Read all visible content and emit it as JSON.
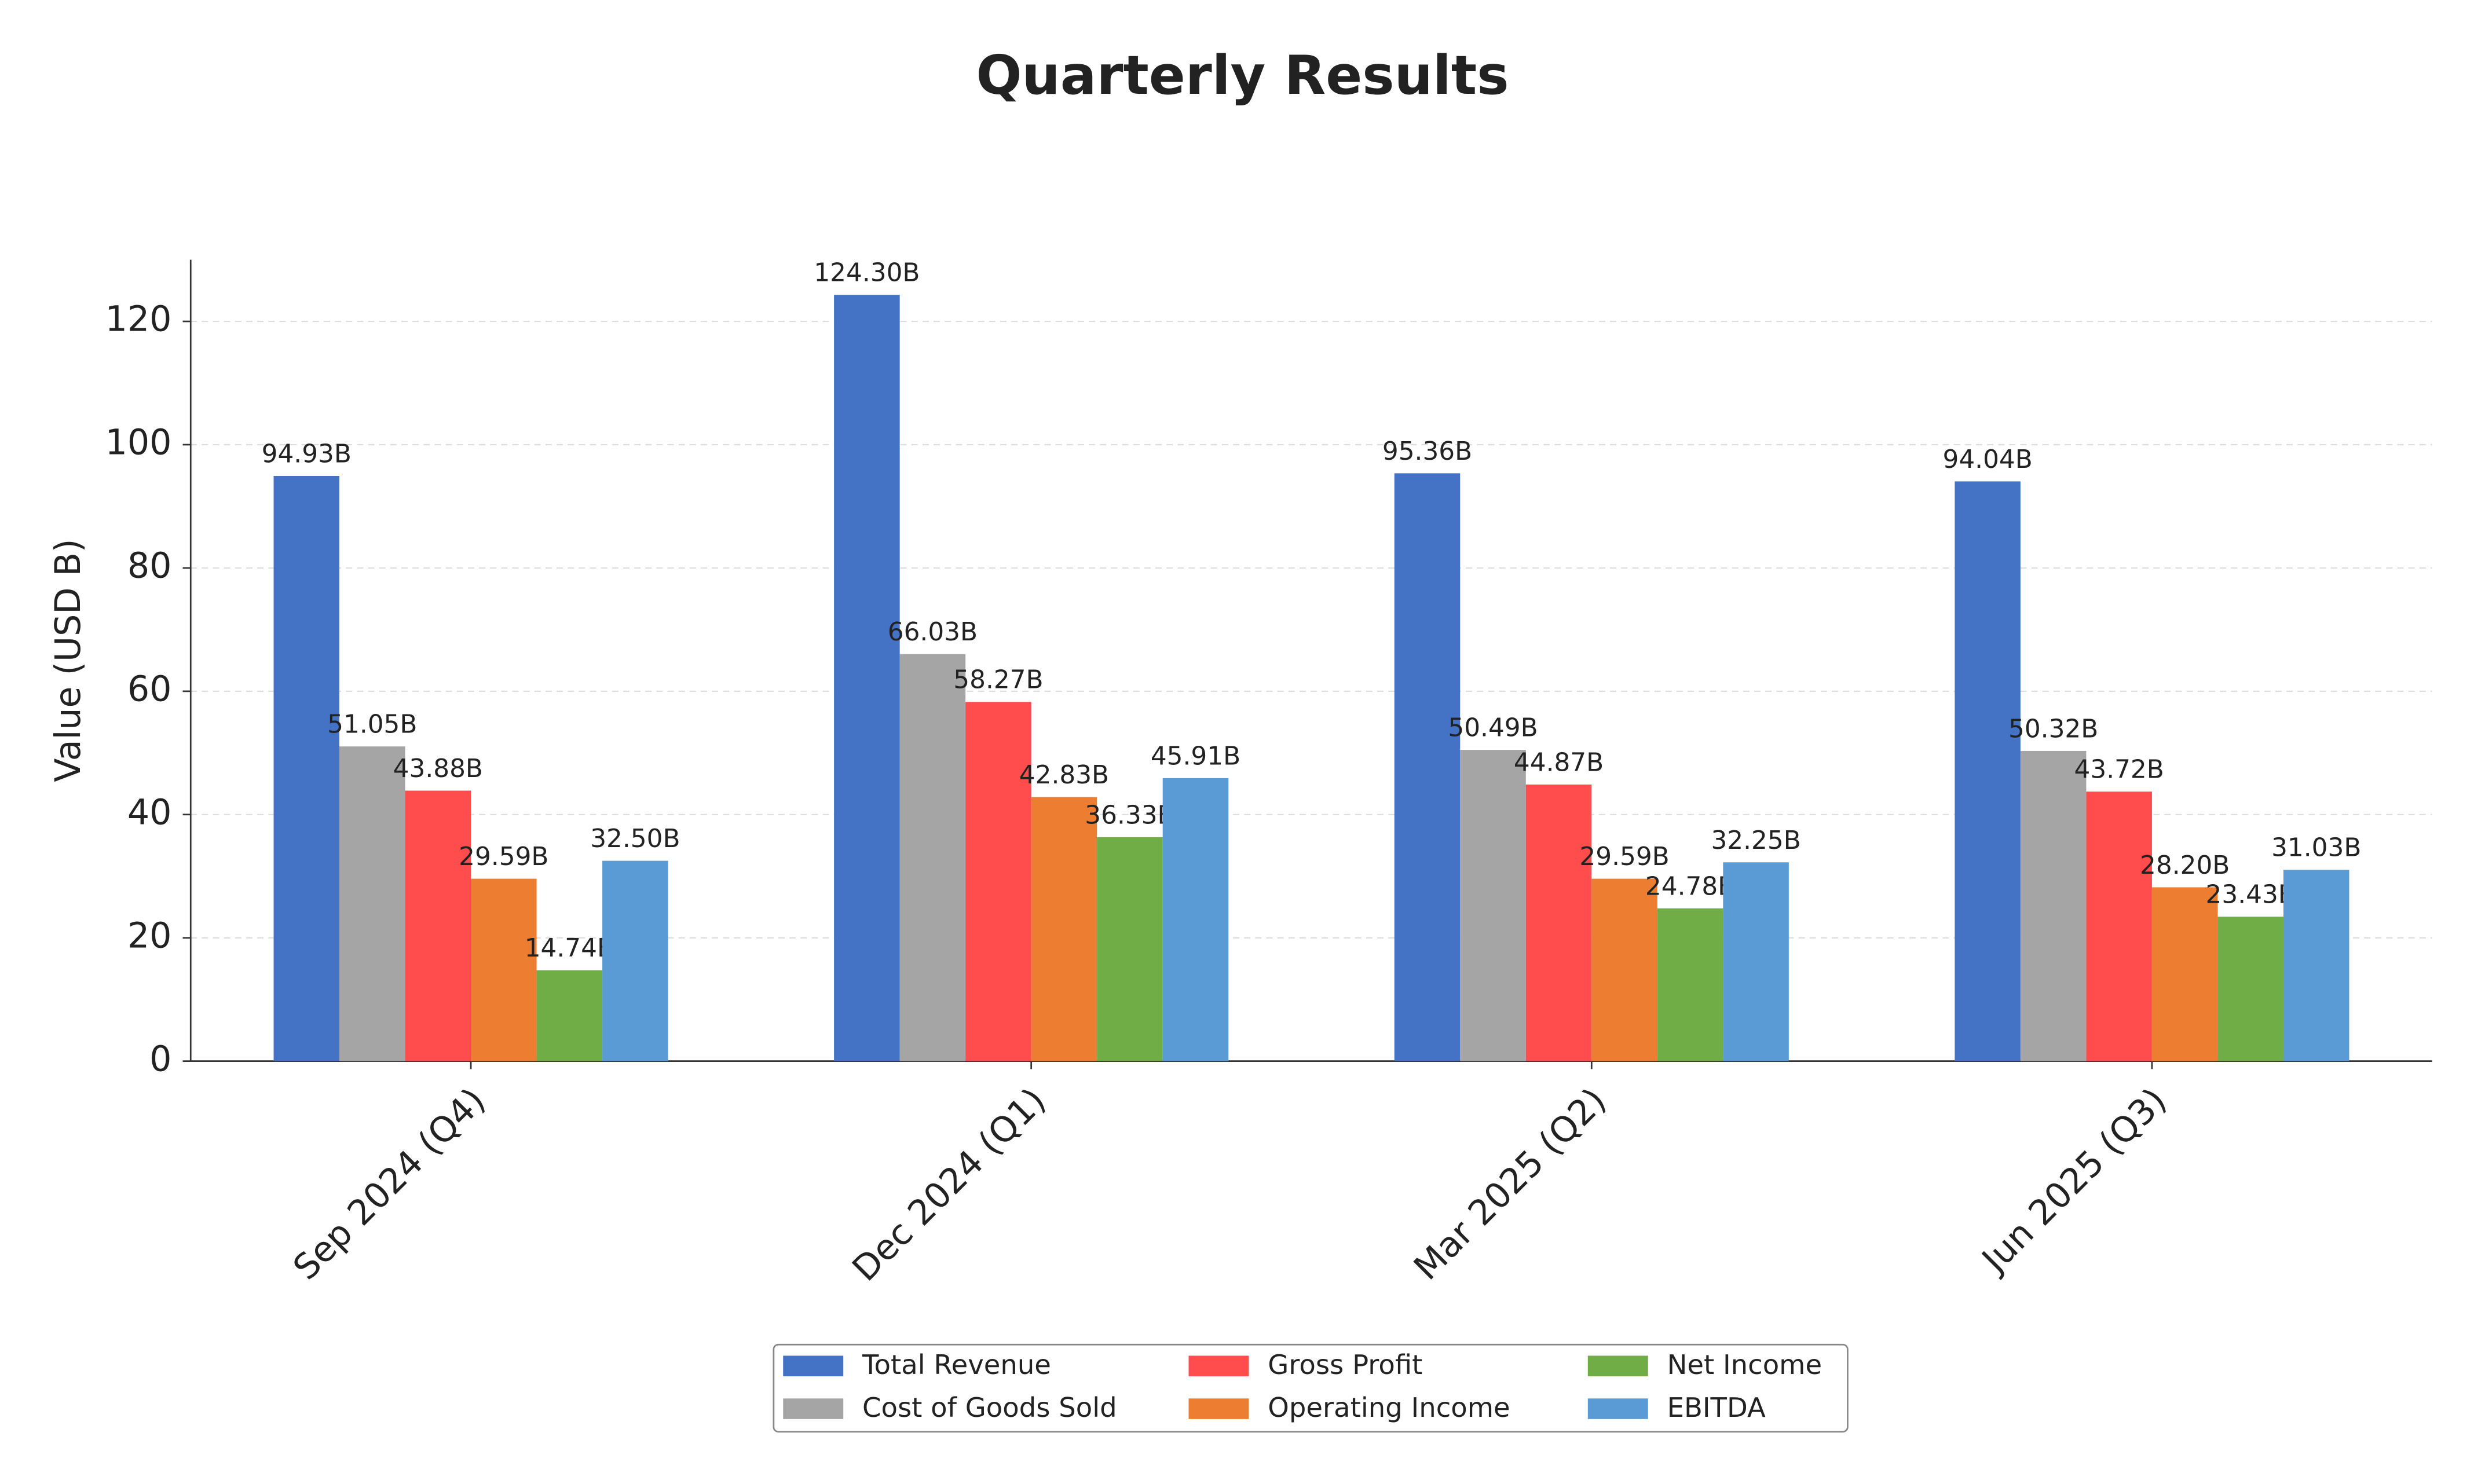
{
  "chart_data": {
    "type": "bar",
    "title": "Quarterly Results",
    "ylabel": "Value (USD B)",
    "categories": [
      "Sep 2024 (Q4)",
      "Dec 2024 (Q1)",
      "Mar 2025 (Q2)",
      "Jun 2025 (Q3)"
    ],
    "series": [
      {
        "name": "Total Revenue",
        "color": "#4472c4",
        "values": [
          94.93,
          124.3,
          95.36,
          94.04
        ],
        "value_labels": [
          "94.93B",
          "124.30B",
          "95.36B",
          "94.04B"
        ]
      },
      {
        "name": "Cost of Goods Sold",
        "color": "#a5a5a5",
        "values": [
          51.05,
          66.03,
          50.49,
          50.32
        ],
        "value_labels": [
          "51.05B",
          "66.03B",
          "50.49B",
          "50.32B"
        ]
      },
      {
        "name": "Gross Profit",
        "color": "#ff4c4c",
        "values": [
          43.88,
          58.27,
          44.87,
          43.72
        ],
        "value_labels": [
          "43.88B",
          "58.27B",
          "44.87B",
          "43.72B"
        ]
      },
      {
        "name": "Operating Income",
        "color": "#ed7d31",
        "values": [
          29.59,
          42.83,
          29.59,
          28.2
        ],
        "value_labels": [
          "29.59B",
          "42.83B",
          "29.59B",
          "28.20B"
        ]
      },
      {
        "name": "Net Income",
        "color": "#70ad47",
        "values": [
          14.74,
          36.33,
          24.78,
          23.43
        ],
        "value_labels": [
          "14.74B",
          "36.33B",
          "24.78B",
          "23.43B"
        ]
      },
      {
        "name": "EBITDA",
        "color": "#5b9bd5",
        "values": [
          32.5,
          45.91,
          32.25,
          31.03
        ],
        "value_labels": [
          "32.50B",
          "45.91B",
          "32.25B",
          "31.03B"
        ]
      }
    ],
    "ylim": [
      0,
      130
    ],
    "yticks": [
      0,
      20,
      40,
      60,
      80,
      100,
      120
    ],
    "grid": true,
    "legend": "lower center"
  }
}
